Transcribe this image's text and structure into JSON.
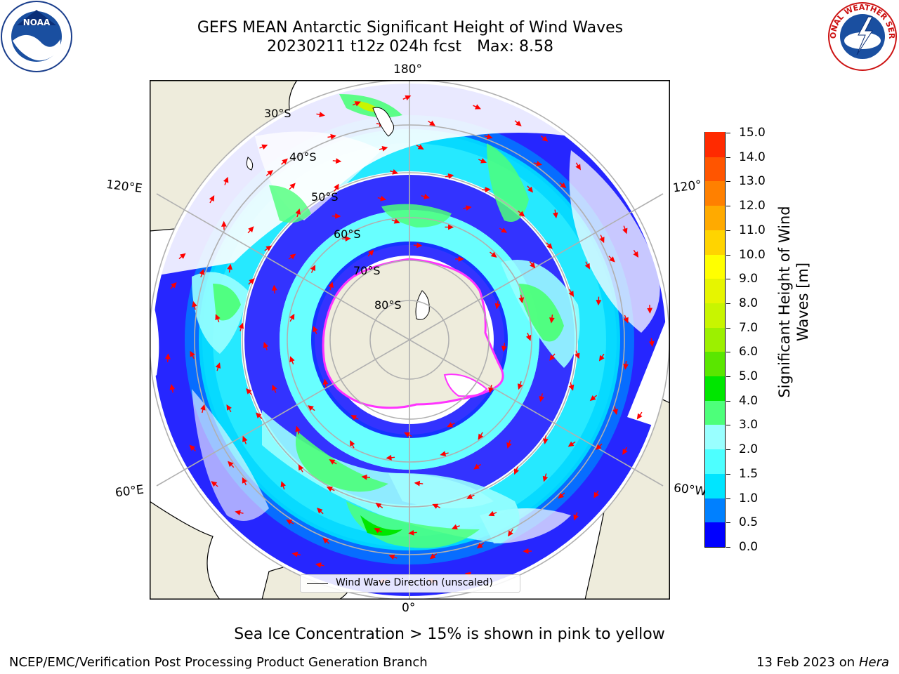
{
  "header": {
    "title_line1": "GEFS MEAN Antarctic Significant Height of Wind Waves",
    "title_line2_date": "20230211 t12z 024h fcst",
    "title_line2_max": "Max: 8.58"
  },
  "logos": {
    "left": "noaa-logo",
    "right": "national-weather-service-logo",
    "right_text": "NATIONAL WEATHER SERVICE"
  },
  "map": {
    "projection": "south-polar-stereographic",
    "longitude_labels": {
      "top": "180°",
      "bottom": "0°",
      "upper_left": "120°E",
      "upper_right": "120°",
      "lower_left": "60°E",
      "lower_right": "60°W"
    },
    "latitude_labels": [
      "30°S",
      "40°S",
      "50°S",
      "60°S",
      "70°S",
      "80°S"
    ],
    "legend_label": "Wind Wave Direction (unscaled)",
    "colors": {
      "land": "#eeecdc",
      "ocean_background": "#ffffff",
      "gridlines": "#b0b0b0",
      "arrows": "#ff0000",
      "sea_ice_edge": "#ff33ff"
    }
  },
  "colorbar": {
    "title": "Significant Height of Wind Waves [m]",
    "tick_labels": [
      "15.0",
      "14.0",
      "13.0",
      "12.0",
      "11.0",
      "10.0",
      "9.0",
      "8.0",
      "7.0",
      "6.0",
      "5.0",
      "4.0",
      "3.0",
      "2.0",
      "1.5",
      "1.0",
      "0.5",
      "0.0"
    ],
    "bin_colors_bottom_to_top": [
      "#0000ff",
      "#0080ff",
      "#00e5ff",
      "#4dffff",
      "#99ffff",
      "#4dff7a",
      "#00e600",
      "#5ae600",
      "#9cf000",
      "#c8f500",
      "#e6f500",
      "#ffff00",
      "#ffd400",
      "#ffaa00",
      "#ff8000",
      "#ff5500",
      "#ff2a00"
    ]
  },
  "notes": {
    "sea_ice": "Sea Ice Concentration > 15% is shown in pink to yellow"
  },
  "footer": {
    "left": "NCEP/EMC/Verification Post Processing Product Generation Branch",
    "right_date": "13 Feb 2023 on",
    "right_machine": "Hera"
  }
}
